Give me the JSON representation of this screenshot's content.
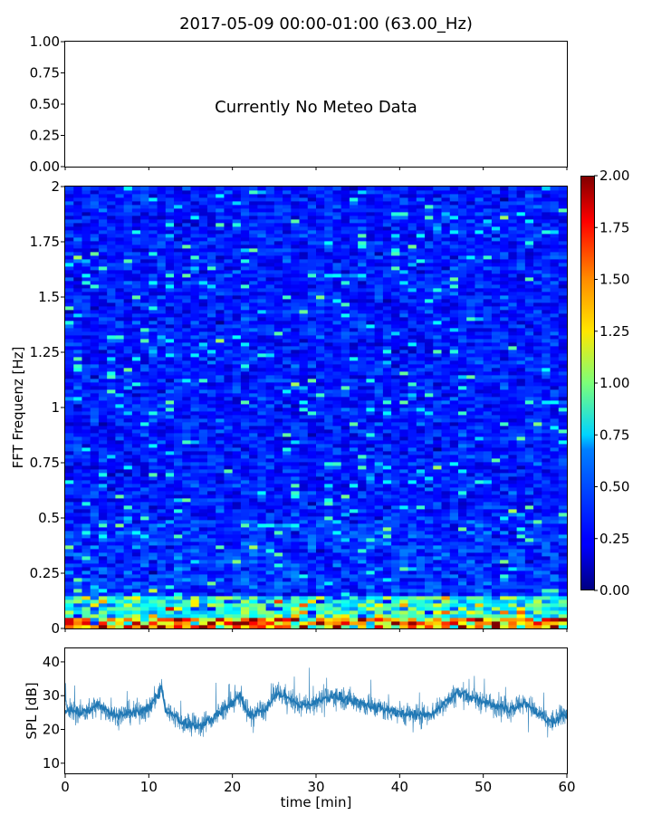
{
  "figure": {
    "title": "2017-05-09 00:00-01:00 (63.00_Hz)"
  },
  "chart_data": [
    {
      "type": "text",
      "panel": "meteo",
      "annotation": "Currently No Meteo Data",
      "ylim": [
        0,
        1
      ],
      "yticks": [
        "0.00",
        "0.25",
        "0.50",
        "0.75",
        "1.00"
      ],
      "xlim": [
        0,
        60
      ],
      "xticks_labeled": false
    },
    {
      "type": "heatmap",
      "panel": "spectrogram",
      "ylabel": "FFT Frequenz [Hz]",
      "xlim": [
        0,
        60
      ],
      "ylim": [
        0,
        2
      ],
      "yticks": [
        "0",
        "0.25",
        "0.5",
        "0.75",
        "1",
        "1.25",
        "1.5",
        "1.75",
        "2"
      ],
      "colormap": "jet",
      "colorbar": {
        "range": [
          0,
          2
        ],
        "ticks": [
          "0.00",
          "0.25",
          "0.50",
          "0.75",
          "1.00",
          "1.25",
          "1.50",
          "1.75",
          "2.00"
        ]
      },
      "typical_level_by_frequency": [
        {
          "frequency_hz": [
            0,
            0.05
          ],
          "value": 1.3
        },
        {
          "frequency_hz": [
            0.05,
            0.15
          ],
          "value": 0.8
        },
        {
          "frequency_hz": [
            0.15,
            0.5
          ],
          "value": 0.35
        },
        {
          "frequency_hz": [
            0.5,
            2
          ],
          "value": 0.3
        }
      ]
    },
    {
      "type": "line",
      "panel": "spl",
      "ylabel": "SPL [dB]",
      "xlabel": "time [min]",
      "xlim": [
        0,
        60
      ],
      "ylim": [
        7,
        44
      ],
      "yticks": [
        "10",
        "20",
        "30",
        "40"
      ],
      "xticks": [
        "0",
        "10",
        "20",
        "30",
        "40",
        "50",
        "60"
      ],
      "color": "#1f77b4",
      "series": [
        {
          "x": [
            0,
            2,
            4,
            6,
            8,
            10,
            11,
            11.5,
            12,
            14,
            16,
            18,
            20,
            21,
            22,
            24,
            25.5,
            28,
            30,
            32,
            34,
            36,
            38,
            40,
            42,
            44,
            46,
            47,
            48,
            50,
            52,
            53,
            55,
            57,
            58,
            60
          ],
          "y": [
            26,
            25,
            27,
            24,
            25,
            26,
            30,
            33,
            26,
            22,
            21,
            24,
            28,
            30,
            24,
            26,
            31,
            27,
            28,
            30,
            29,
            27,
            26,
            25,
            24,
            25,
            29,
            31,
            30,
            28,
            27,
            26,
            28,
            24,
            22,
            25
          ]
        }
      ]
    }
  ],
  "colors": {
    "line": "#1f77b4",
    "axis": "#000000",
    "background": "#ffffff"
  }
}
